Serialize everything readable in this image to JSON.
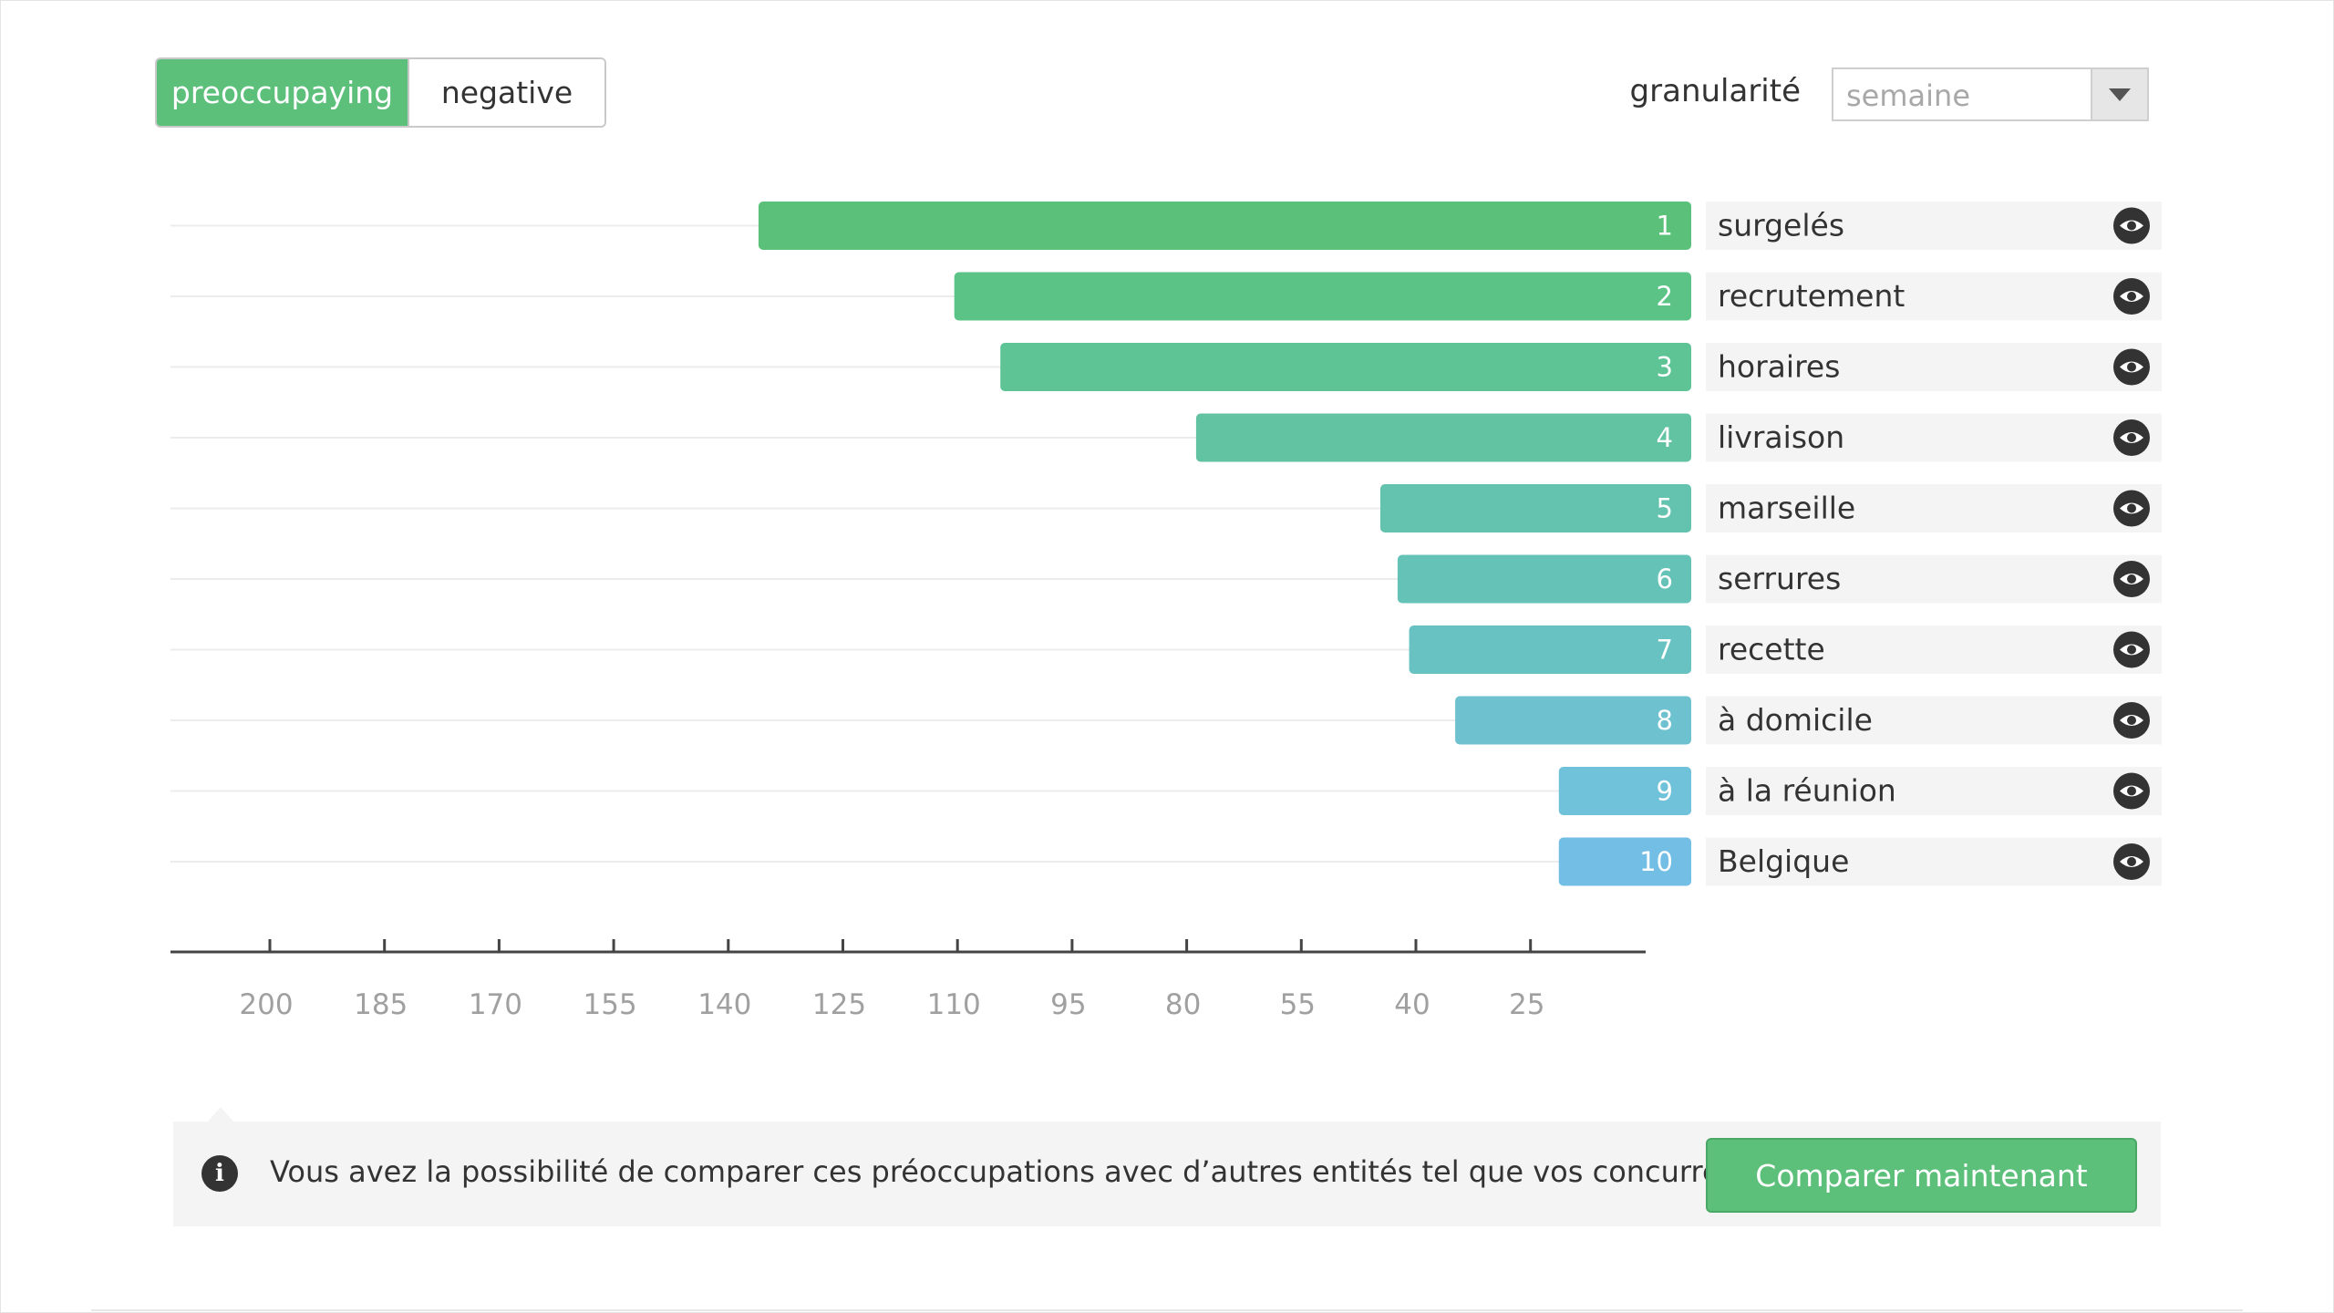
{
  "toggle": {
    "active": "preoccupaying",
    "inactive": "negative"
  },
  "granularity": {
    "label": "granularité",
    "value": "semaine"
  },
  "chart_data": {
    "type": "bar",
    "orientation": "horizontal-reversed",
    "categories": [
      "surgelés",
      "recrutement",
      "horaires",
      "livraison",
      "marseille",
      "serrures",
      "recette",
      "à domicile",
      "à la réunion",
      "Belgique"
    ],
    "ranks": [
      "1",
      "2",
      "3",
      "4",
      "5",
      "6",
      "7",
      "8",
      "9",
      "10"
    ],
    "values": [
      162,
      128,
      120,
      86,
      54,
      51,
      49,
      41,
      23,
      23
    ],
    "x_ticks": [
      "200",
      "185",
      "170",
      "155",
      "140",
      "125",
      "110",
      "95",
      "80",
      "55",
      "40",
      "25"
    ],
    "colors": [
      "#5bc17a",
      "#5cc387",
      "#5ec495",
      "#61c3a1",
      "#63c3ae",
      "#65c2b7",
      "#69c2c2",
      "#6ec2cf",
      "#70c1da",
      "#73bee5"
    ],
    "icon": "eye-icon"
  },
  "info": {
    "icon": "info-icon",
    "text": "Vous avez la possibilité de comparer ces préoccupations avec d’autres entités tel que vos concurrents",
    "button": "Comparer maintenant"
  }
}
